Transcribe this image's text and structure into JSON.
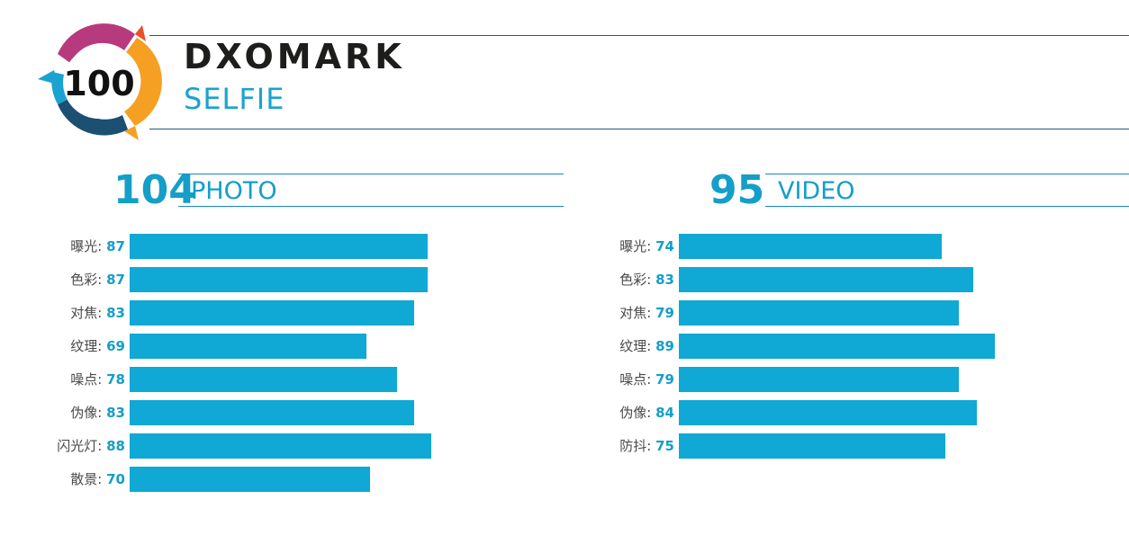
{
  "badge": {
    "score": "100"
  },
  "brand": {
    "name": "DXOMARK",
    "category": "SELFIE"
  },
  "colors": {
    "accent": "#10a8d4",
    "score_text": "#149ec9",
    "line": "#1a5a86"
  },
  "chart_data": [
    {
      "type": "bar",
      "orientation": "horizontal",
      "title": "PHOTO",
      "score": "104",
      "categories": [
        "曝光",
        "色彩",
        "对焦",
        "纹理",
        "噪点",
        "伪像",
        "闪光灯",
        "散景"
      ],
      "values": [
        87,
        87,
        83,
        69,
        78,
        83,
        88,
        70
      ],
      "xlim": [
        0,
        100
      ]
    },
    {
      "type": "bar",
      "orientation": "horizontal",
      "title": "VIDEO",
      "score": "95",
      "categories": [
        "曝光",
        "色彩",
        "对焦",
        "纹理",
        "噪点",
        "伪像",
        "防抖"
      ],
      "values": [
        74,
        83,
        79,
        89,
        79,
        84,
        75
      ],
      "xlim": [
        0,
        100
      ]
    }
  ]
}
